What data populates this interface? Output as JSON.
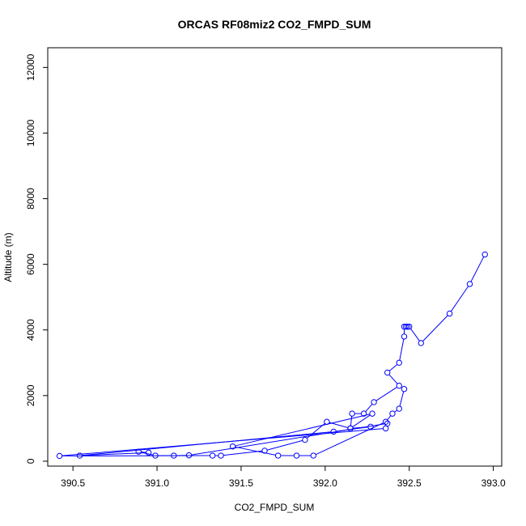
{
  "chart_data": {
    "type": "line",
    "title": "ORCAS RF08miz2 CO2_FMPD_SUM",
    "xlabel": "CO2_FMPD_SUM",
    "ylabel": "Altitude (m)",
    "xlim": [
      390.35,
      393.05
    ],
    "ylim": [
      -150,
      12600
    ],
    "x_ticks": [
      390.5,
      391.0,
      391.5,
      392.0,
      392.5,
      393.0
    ],
    "x_tick_labels": [
      "390.5",
      "391.0",
      "391.5",
      "392.0",
      "392.5",
      "393.0"
    ],
    "y_ticks": [
      0,
      2000,
      4000,
      6000,
      8000,
      10000,
      12000
    ],
    "y_tick_labels": [
      "0",
      "2000",
      "4000",
      "6000",
      "8000",
      "10000",
      "12000"
    ],
    "grid": false,
    "legend": "none",
    "colors": {
      "series": "#0000ff",
      "axis": "#000000"
    },
    "series": [
      {
        "marker": "open-circle",
        "line": true,
        "x": [
          392.95,
          392.86,
          392.74,
          392.57,
          392.5,
          392.49,
          392.48,
          392.47,
          392.47,
          392.44,
          392.37,
          392.44,
          392.29,
          392.23,
          392.16,
          392.15,
          392.01,
          391.88,
          391.64,
          391.38,
          391.33,
          390.42,
          392.36,
          392.37,
          391.19,
          391.1,
          390.99,
          390.89,
          390.95,
          390.54,
          392.05,
          392.27,
          392.15,
          392.28,
          391.45,
          391.72,
          391.83,
          391.93,
          392.36,
          392.4,
          392.44,
          392.47
        ],
        "y": [
          6300,
          5400,
          4500,
          3600,
          4100,
          4100,
          4100,
          4100,
          3800,
          3000,
          2700,
          2300,
          1800,
          1450,
          1450,
          1000,
          1200,
          650,
          320,
          170,
          170,
          160,
          1000,
          1150,
          180,
          170,
          170,
          290,
          260,
          170,
          900,
          1050,
          1000,
          1450,
          450,
          170,
          170,
          170,
          1200,
          1450,
          1600,
          2200
        ]
      }
    ]
  }
}
